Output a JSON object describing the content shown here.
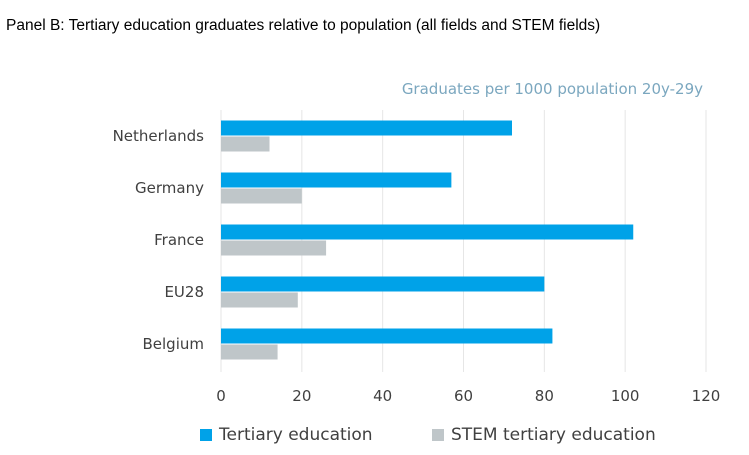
{
  "chart_data": {
    "type": "bar",
    "orientation": "horizontal",
    "title": "Panel B: Tertiary education graduates relative to population (all fields and STEM fields)",
    "unit_label": "Graduates per 1000 population 20y-29y",
    "categories": [
      "Netherlands",
      "Germany",
      "France",
      "EU28",
      "Belgium"
    ],
    "series": [
      {
        "name": "Tertiary education",
        "color": "#00a2e8",
        "values": [
          72,
          57,
          102,
          80,
          82
        ]
      },
      {
        "name": "STEM tertiary education",
        "color": "#bfc6c9",
        "values": [
          12,
          20,
          26,
          19,
          14
        ]
      }
    ],
    "xlim": [
      0,
      120
    ],
    "xticks": [
      "0",
      "20",
      "40",
      "60",
      "80",
      "100",
      "120"
    ],
    "grid": true,
    "legend_position": "bottom"
  }
}
